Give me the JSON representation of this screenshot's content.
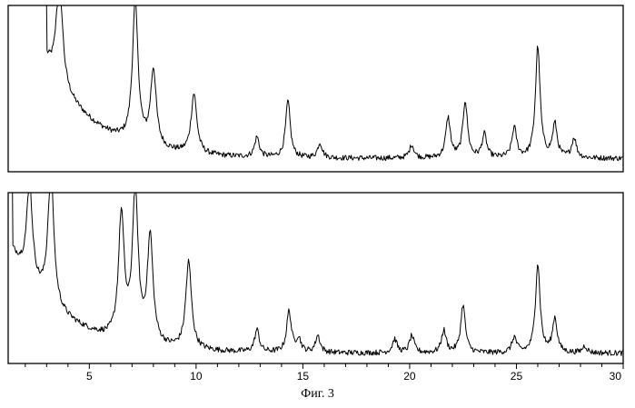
{
  "caption": "Фиг. 3",
  "chart_data": [
    {
      "type": "line",
      "panel": "top",
      "xlim": [
        1.2,
        30
      ],
      "ylim": [
        0,
        100
      ],
      "xticks_labeled": [
        5,
        10,
        15,
        20,
        25,
        30
      ],
      "grid": false,
      "baseline": 8,
      "start": {
        "x": 3.0,
        "y": 115
      },
      "background_decay": {
        "amplitude": 60,
        "decay": 1.2
      },
      "peaks": [
        {
          "x": 3.6,
          "y": 76
        },
        {
          "x": 7.15,
          "y": 92
        },
        {
          "x": 8.0,
          "y": 54
        },
        {
          "x": 9.9,
          "y": 44
        },
        {
          "x": 12.85,
          "y": 20
        },
        {
          "x": 14.3,
          "y": 42
        },
        {
          "x": 15.8,
          "y": 17
        },
        {
          "x": 20.1,
          "y": 16
        },
        {
          "x": 21.8,
          "y": 32
        },
        {
          "x": 22.6,
          "y": 42
        },
        {
          "x": 23.5,
          "y": 22
        },
        {
          "x": 24.9,
          "y": 26
        },
        {
          "x": 26.0,
          "y": 75
        },
        {
          "x": 26.8,
          "y": 28
        },
        {
          "x": 27.7,
          "y": 20
        }
      ]
    },
    {
      "type": "line",
      "panel": "bottom",
      "xlim": [
        1.2,
        30
      ],
      "ylim": [
        0,
        100
      ],
      "xticks_labeled": [
        5,
        10,
        15,
        20,
        25,
        30
      ],
      "grid": false,
      "baseline": 6,
      "start": {
        "x": 1.4,
        "y": 100
      },
      "background_decay": {
        "amplitude": 60,
        "decay": 1.3
      },
      "peaks": [
        {
          "x": 2.2,
          "y": 62
        },
        {
          "x": 3.2,
          "y": 86
        },
        {
          "x": 6.5,
          "y": 78
        },
        {
          "x": 7.15,
          "y": 94
        },
        {
          "x": 7.85,
          "y": 68
        },
        {
          "x": 9.65,
          "y": 57
        },
        {
          "x": 12.85,
          "y": 19
        },
        {
          "x": 14.35,
          "y": 30
        },
        {
          "x": 14.8,
          "y": 14
        },
        {
          "x": 15.7,
          "y": 16
        },
        {
          "x": 19.3,
          "y": 14
        },
        {
          "x": 20.1,
          "y": 16
        },
        {
          "x": 21.6,
          "y": 19
        },
        {
          "x": 22.5,
          "y": 34
        },
        {
          "x": 24.9,
          "y": 15
        },
        {
          "x": 26.0,
          "y": 58
        },
        {
          "x": 26.8,
          "y": 26
        },
        {
          "x": 28.2,
          "y": 10
        }
      ]
    }
  ]
}
